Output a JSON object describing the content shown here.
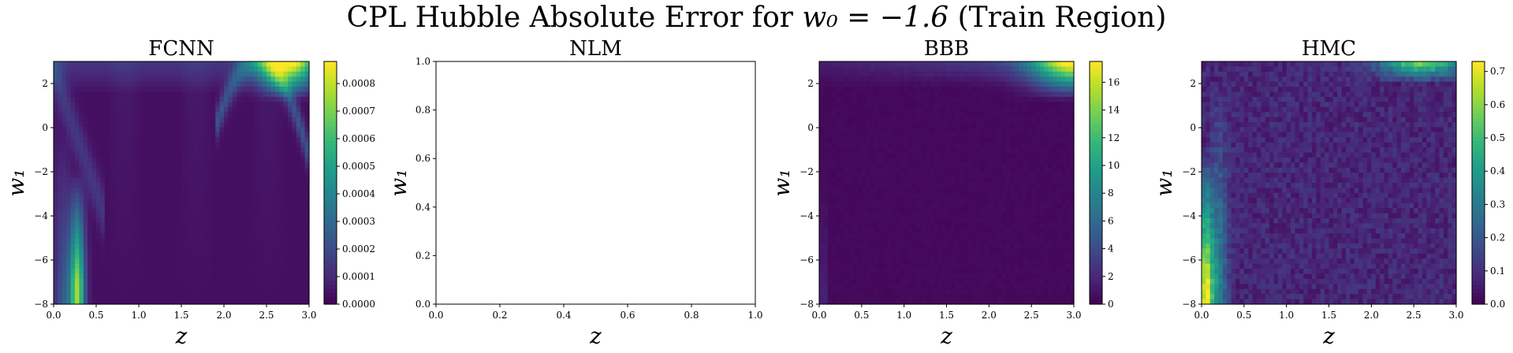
{
  "figure": {
    "title_pre": "CPL Hubble Absolute Error for ",
    "title_math": "w₀ = −1.6",
    "title_post": " (Train Region)"
  },
  "chart_data": [
    {
      "type": "heatmap",
      "title": "FCNN",
      "xlabel": "z",
      "ylabel": "w₁",
      "xlim": [
        0,
        3
      ],
      "ylim": [
        -8,
        3
      ],
      "xticks": [
        "0.0",
        "0.5",
        "1.0",
        "1.5",
        "2.0",
        "2.5",
        "3.0"
      ],
      "yticks": [
        "2",
        "0",
        "−2",
        "−4",
        "−6",
        "−8"
      ],
      "colorbar": {
        "vmin": 0,
        "vmax": 0.00088,
        "ticks": [
          "0.0000",
          "0.0001",
          "0.0002",
          "0.0003",
          "0.0004",
          "0.0005",
          "0.0006",
          "0.0007",
          "0.0008"
        ]
      },
      "colormap": "viridis",
      "features": [
        {
          "region": "z 0.2–0.35, w1 −8 to −3",
          "error_approx": 0.0005
        },
        {
          "region": "z 2.3–3.0, w1 2–3",
          "error_approx": 0.00085
        },
        {
          "region": "z 0.5–3.0, w1 −8 to 0",
          "error_approx": 2e-05
        }
      ]
    },
    {
      "type": "heatmap",
      "title": "NLM",
      "xlabel": "z",
      "ylabel": "w₁",
      "xlim": [
        0,
        1
      ],
      "ylim": [
        0,
        1
      ],
      "xticks": [
        "0.0",
        "0.2",
        "0.4",
        "0.6",
        "0.8",
        "1.0"
      ],
      "yticks": [
        "0.0",
        "0.2",
        "0.4",
        "0.6",
        "0.8",
        "1.0"
      ],
      "empty": true
    },
    {
      "type": "heatmap",
      "title": "BBB",
      "xlabel": "z",
      "ylabel": "w₁",
      "xlim": [
        0,
        3
      ],
      "ylim": [
        -8,
        3
      ],
      "xticks": [
        "0.0",
        "0.5",
        "1.0",
        "1.5",
        "2.0",
        "2.5",
        "3.0"
      ],
      "yticks": [
        "2",
        "0",
        "−2",
        "−4",
        "−6",
        "−8"
      ],
      "colorbar": {
        "vmin": 0,
        "vmax": 17.5,
        "ticks": [
          "0",
          "2",
          "4",
          "6",
          "8",
          "10",
          "12",
          "14",
          "16"
        ]
      },
      "colormap": "viridis",
      "features": [
        {
          "region": "z 2.7–3.0, w1 2.5–3",
          "error_approx": 16
        },
        {
          "region": "z 0–2.0, w1 −8 to 0",
          "error_approx": 0.3
        }
      ]
    },
    {
      "type": "heatmap",
      "title": "HMC",
      "xlabel": "z",
      "ylabel": "w₁",
      "xlim": [
        0,
        3
      ],
      "ylim": [
        -8,
        3
      ],
      "xticks": [
        "0.0",
        "0.5",
        "1.0",
        "1.5",
        "2.0",
        "2.5",
        "3.0"
      ],
      "yticks": [
        "2",
        "0",
        "−2",
        "−4",
        "−6",
        "−8"
      ],
      "colorbar": {
        "vmin": 0,
        "vmax": 0.73,
        "ticks": [
          "0.0",
          "0.1",
          "0.2",
          "0.3",
          "0.4",
          "0.5",
          "0.6",
          "0.7"
        ]
      },
      "colormap": "viridis",
      "features": [
        {
          "region": "z 0–0.15, w1 −8 to −4",
          "error_approx": 0.65
        },
        {
          "region": "z 2.2–3.0, w1 2.5–3",
          "error_approx": 0.55
        },
        {
          "region": "background",
          "error_approx": 0.05
        }
      ]
    }
  ]
}
